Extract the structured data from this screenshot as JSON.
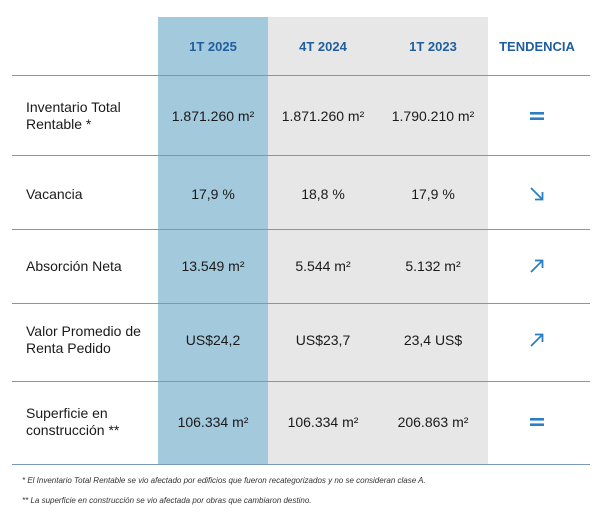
{
  "columns": {
    "current": "1T 2025",
    "prev_quarter": "4T 2024",
    "prev_year": "1T 2023",
    "trend": "TENDENCIA"
  },
  "rows": [
    {
      "label": "Inventario Total Rentable *",
      "current": "1.871.260 m²",
      "prev_quarter": "1.871.260 m²",
      "prev_year": "1.790.210 m²",
      "trend": "equal-icon"
    },
    {
      "label": "Vacancia",
      "current": "17,9 %",
      "prev_quarter": "18,8 %",
      "prev_year": "17,9 %",
      "trend": "arrow-down-right-icon"
    },
    {
      "label": "Absorción Neta",
      "current": "13.549 m²",
      "prev_quarter": "5.544 m²",
      "prev_year": "5.132 m²",
      "trend": "arrow-up-right-icon"
    },
    {
      "label": "Valor Promedio de Renta Pedido",
      "current": "US$24,2",
      "prev_quarter": "US$23,7",
      "prev_year": "23,4 US$",
      "trend": "arrow-up-right-icon"
    },
    {
      "label": "Superficie en construcción **",
      "current": "106.334 m²",
      "prev_quarter": "106.334 m²",
      "prev_year": "206.863 m²",
      "trend": "equal-icon"
    }
  ],
  "footnotes": {
    "note1": "* El Inventario Total Rentable se vio afectado por edificios que fueron recategorizados y no se consideran clase A.",
    "note2": "** La superficie en construcción se vio afectada por obras que cambiaron destino."
  },
  "colors": {
    "current_column_bg": "#a3c9dd",
    "other_columns_bg": "#e7e7e7",
    "header_text": "#1f5f9e",
    "trend_icon": "#2a7fc4",
    "separator": "#7a98b8"
  }
}
